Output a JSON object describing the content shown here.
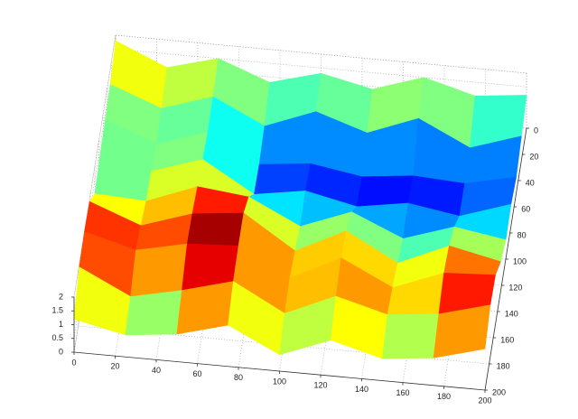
{
  "chart_data": {
    "type": "surface",
    "x": [
      0,
      25,
      50,
      75,
      100,
      125,
      150,
      175,
      200
    ],
    "y": [
      0,
      25,
      50,
      75,
      100,
      125,
      150,
      175,
      200
    ],
    "z": [
      [
        1.8,
        1.0,
        1.5,
        0.8,
        1.3,
        0.9,
        1.5,
        1.0,
        1.2
      ],
      [
        1.4,
        0.7,
        1.3,
        0.4,
        1.1,
        0.5,
        1.2,
        0.3,
        0.9
      ],
      [
        1.3,
        0.6,
        1.2,
        0.2,
        0.4,
        0.1,
        0.3,
        0.2,
        0.6
      ],
      [
        1.2,
        0.8,
        1.4,
        0.3,
        0.6,
        0.2,
        0.5,
        0.2,
        0.8
      ],
      [
        1.0,
        0.9,
        1.6,
        1.4,
        0.5,
        1.2,
        0.4,
        1.0,
        0.7
      ],
      [
        1.9,
        1.2,
        1.8,
        2.0,
        0.8,
        1.7,
        0.7,
        1.5,
        1.1
      ],
      [
        2.0,
        1.5,
        1.9,
        2.0,
        1.0,
        1.9,
        1.0,
        1.7,
        1.8
      ],
      [
        1.9,
        1.0,
        1.4,
        1.9,
        0.9,
        1.7,
        1.2,
        1.4,
        1.9
      ],
      [
        1.2,
        0.8,
        1.0,
        1.5,
        0.6,
        1.3,
        0.8,
        1.0,
        1.5
      ]
    ],
    "colormap": "jet",
    "xlim": [
      0,
      200
    ],
    "ylim": [
      0,
      200
    ],
    "zlim": [
      0,
      2
    ],
    "xticks": [
      0,
      20,
      40,
      60,
      80,
      100,
      120,
      140,
      160,
      180,
      200
    ],
    "yticks": [
      0,
      20,
      40,
      60,
      80,
      100,
      120,
      140,
      160,
      180,
      200
    ],
    "zticks": [
      0,
      0.5,
      1,
      1.5,
      2
    ],
    "grid": true
  }
}
